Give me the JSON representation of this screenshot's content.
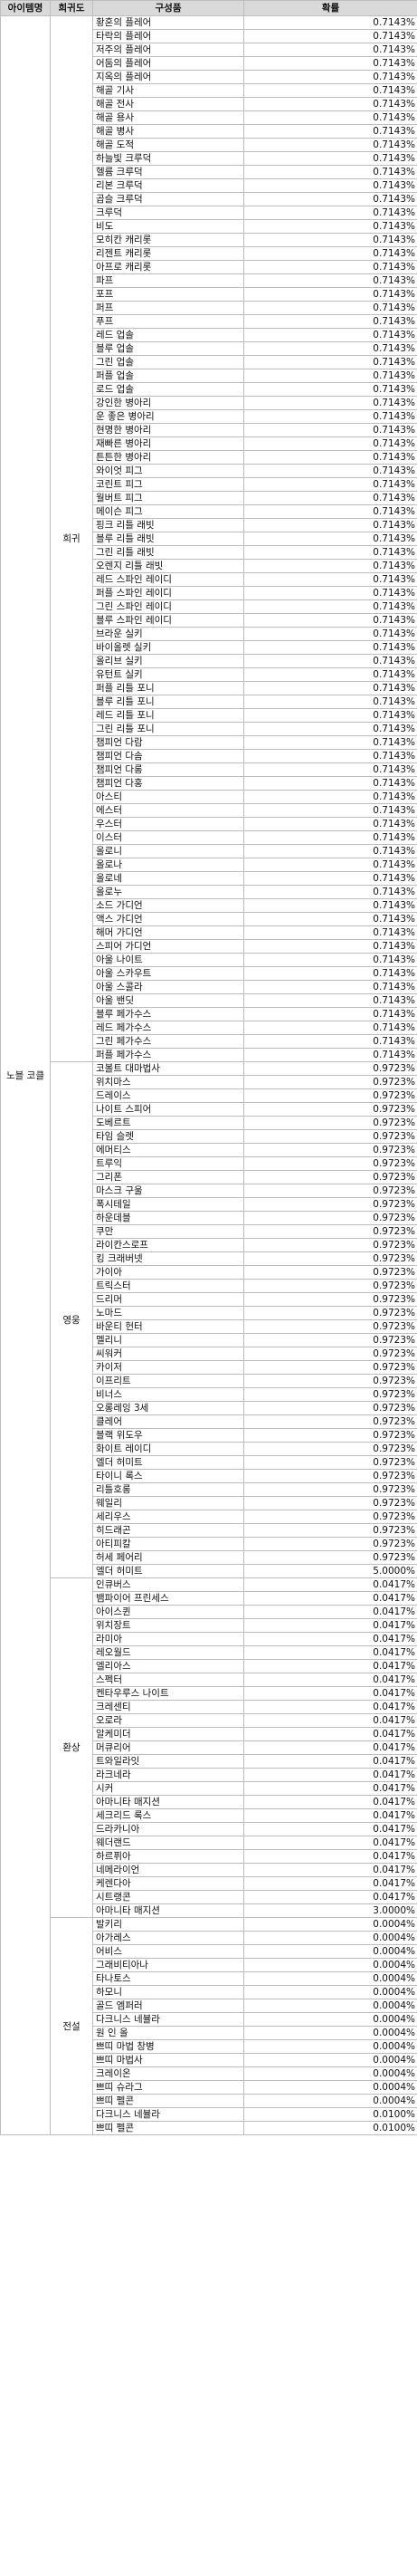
{
  "headers": {
    "item": "아이템명",
    "rarity": "희귀도",
    "component": "구성품",
    "probability": "확률"
  },
  "item_name": "노블 코클",
  "groups": [
    {
      "rarity": "희귀",
      "rows": [
        [
          "황혼의 플레어",
          "0.7143%"
        ],
        [
          "타락의 플레어",
          "0.7143%"
        ],
        [
          "저주의 플레어",
          "0.7143%"
        ],
        [
          "어둠의 플레어",
          "0.7143%"
        ],
        [
          "지옥의 플레어",
          "0.7143%"
        ],
        [
          "해골 기사",
          "0.7143%"
        ],
        [
          "해골 전사",
          "0.7143%"
        ],
        [
          "해골 용사",
          "0.7143%"
        ],
        [
          "해골 병사",
          "0.7143%"
        ],
        [
          "해골 도적",
          "0.7143%"
        ],
        [
          "하늘빛 크루덕",
          "0.7143%"
        ],
        [
          "헬륨 크루덕",
          "0.7143%"
        ],
        [
          "리본 크루덕",
          "0.7143%"
        ],
        [
          "곱슬 크루덕",
          "0.7143%"
        ],
        [
          "크루덕",
          "0.7143%"
        ],
        [
          "비도",
          "0.7143%"
        ],
        [
          "모히칸 캐리롯",
          "0.7143%"
        ],
        [
          "리젠트 캐리롯",
          "0.7143%"
        ],
        [
          "아프로 캐리롯",
          "0.7143%"
        ],
        [
          "파프",
          "0.7143%"
        ],
        [
          "포프",
          "0.7143%"
        ],
        [
          "퍼프",
          "0.7143%"
        ],
        [
          "푸프",
          "0.7143%"
        ],
        [
          "레드 업솔",
          "0.7143%"
        ],
        [
          "블루 업솔",
          "0.7143%"
        ],
        [
          "그린 업솔",
          "0.7143%"
        ],
        [
          "퍼플 업솔",
          "0.7143%"
        ],
        [
          "로드 업솔",
          "0.7143%"
        ],
        [
          "강인한 병아리",
          "0.7143%"
        ],
        [
          "운 좋은 병아리",
          "0.7143%"
        ],
        [
          "현명한 병아리",
          "0.7143%"
        ],
        [
          "재빠른 병아리",
          "0.7143%"
        ],
        [
          "튼튼한 병아리",
          "0.7143%"
        ],
        [
          "와이엇 피그",
          "0.7143%"
        ],
        [
          "코린트 피그",
          "0.7143%"
        ],
        [
          "월버트 피그",
          "0.7143%"
        ],
        [
          "메이슨 피그",
          "0.7143%"
        ],
        [
          "핑크 리틀 래빗",
          "0.7143%"
        ],
        [
          "블루 리틀 래빗",
          "0.7143%"
        ],
        [
          "그린 리틀 래빗",
          "0.7143%"
        ],
        [
          "오렌지 리틀 래빗",
          "0.7143%"
        ],
        [
          "레드 스파인 레이디",
          "0.7143%"
        ],
        [
          "퍼플 스파인 레이디",
          "0.7143%"
        ],
        [
          "그린 스파인 레이디",
          "0.7143%"
        ],
        [
          "블루 스파인 레이디",
          "0.7143%"
        ],
        [
          "브라운 실키",
          "0.7143%"
        ],
        [
          "바이올렛 실키",
          "0.7143%"
        ],
        [
          "올리브 실키",
          "0.7143%"
        ],
        [
          "유턴트 실키",
          "0.7143%"
        ],
        [
          "퍼플 리틀 포니",
          "0.7143%"
        ],
        [
          "블루 리틀 포니",
          "0.7143%"
        ],
        [
          "레드 리틀 포니",
          "0.7143%"
        ],
        [
          "그린 리틀 포니",
          "0.7143%"
        ],
        [
          "챔피언 다람",
          "0.7143%"
        ],
        [
          "챔피언 다솜",
          "0.7143%"
        ],
        [
          "챔피언 다롱",
          "0.7143%"
        ],
        [
          "챔피언 다홍",
          "0.7143%"
        ],
        [
          "아스티",
          "0.7143%"
        ],
        [
          "에스터",
          "0.7143%"
        ],
        [
          "우스터",
          "0.7143%"
        ],
        [
          "이스터",
          "0.7143%"
        ],
        [
          "올로니",
          "0.7143%"
        ],
        [
          "올로나",
          "0.7143%"
        ],
        [
          "올로네",
          "0.7143%"
        ],
        [
          "올로누",
          "0.7143%"
        ],
        [
          "소드 가디언",
          "0.7143%"
        ],
        [
          "액스 가디언",
          "0.7143%"
        ],
        [
          "해머 가디언",
          "0.7143%"
        ],
        [
          "스피어 가디언",
          "0.7143%"
        ],
        [
          "아울 나이트",
          "0.7143%"
        ],
        [
          "아울 스카우트",
          "0.7143%"
        ],
        [
          "아울 스콜라",
          "0.7143%"
        ],
        [
          "아울 밴딧",
          "0.7143%"
        ],
        [
          "블루 페가수스",
          "0.7143%"
        ],
        [
          "레드 페가수스",
          "0.7143%"
        ],
        [
          "그린 페가수스",
          "0.7143%"
        ],
        [
          "퍼플 페가수스",
          "0.7143%"
        ]
      ]
    },
    {
      "rarity": "영웅",
      "rows": [
        [
          "코볼트 대마법사",
          "0.9723%"
        ],
        [
          "위치마스",
          "0.9723%"
        ],
        [
          "드레이스",
          "0.9723%"
        ],
        [
          "나이트 스피어",
          "0.9723%"
        ],
        [
          "도베르트",
          "0.9723%"
        ],
        [
          "타임 슬렛",
          "0.9723%"
        ],
        [
          "에머티스",
          "0.9723%"
        ],
        [
          "트루익",
          "0.9723%"
        ],
        [
          "그리폰",
          "0.9723%"
        ],
        [
          "마스크 구울",
          "0.9723%"
        ],
        [
          "폭시테일",
          "0.9723%"
        ],
        [
          "하운데블",
          "0.9723%"
        ],
        [
          "쿠만",
          "0.9723%"
        ],
        [
          "라이칸스로프",
          "0.9723%"
        ],
        [
          "킹 크래버넷",
          "0.9723%"
        ],
        [
          "가이아",
          "0.9723%"
        ],
        [
          "트릭스터",
          "0.9723%"
        ],
        [
          "드리머",
          "0.9723%"
        ],
        [
          "노마드",
          "0.9723%"
        ],
        [
          "바운티 헌터",
          "0.9723%"
        ],
        [
          "멜리니",
          "0.9723%"
        ],
        [
          "씨워커",
          "0.9723%"
        ],
        [
          "카이저",
          "0.9723%"
        ],
        [
          "이프리트",
          "0.9723%"
        ],
        [
          "비너스",
          "0.9723%"
        ],
        [
          "오롱레잉 3세",
          "0.9723%"
        ],
        [
          "클레어",
          "0.9723%"
        ],
        [
          "블랙 위도우",
          "0.9723%"
        ],
        [
          "화이트 레이디",
          "0.9723%"
        ],
        [
          "엘더 허미트",
          "0.9723%"
        ],
        [
          "타이니 록스",
          "0.9723%"
        ],
        [
          "리틀호롱",
          "0.9723%"
        ],
        [
          "웨일리",
          "0.9723%"
        ],
        [
          "세리우스",
          "0.9723%"
        ],
        [
          "히드래곤",
          "0.9723%"
        ],
        [
          "아티피칼",
          "0.9723%"
        ],
        [
          "허세 페어리",
          "0.9723%"
        ],
        [
          "엘더 허미트",
          "5.0000%"
        ]
      ]
    },
    {
      "rarity": "환상",
      "rows": [
        [
          "인큐버스",
          "0.0417%"
        ],
        [
          "뱀파이어 프린세스",
          "0.0417%"
        ],
        [
          "아이스퀸",
          "0.0417%"
        ],
        [
          "위치장트",
          "0.0417%"
        ],
        [
          "라미아",
          "0.0417%"
        ],
        [
          "레오월드",
          "0.0417%"
        ],
        [
          "엘리아스",
          "0.0417%"
        ],
        [
          "스펙터",
          "0.0417%"
        ],
        [
          "켄타우루스 나이트",
          "0.0417%"
        ],
        [
          "크레센티",
          "0.0417%"
        ],
        [
          "오로라",
          "0.0417%"
        ],
        [
          "알케미더",
          "0.0417%"
        ],
        [
          "머큐리어",
          "0.0417%"
        ],
        [
          "트와일라잇",
          "0.0417%"
        ],
        [
          "라크네라",
          "0.0417%"
        ],
        [
          "시커",
          "0.0417%"
        ],
        [
          "아마니타 매지션",
          "0.0417%"
        ],
        [
          "세크리드 록스",
          "0.0417%"
        ],
        [
          "드라카니아",
          "0.0417%"
        ],
        [
          "웨더랜드",
          "0.0417%"
        ],
        [
          "하르퓌아",
          "0.0417%"
        ],
        [
          "네메라이언",
          "0.0417%"
        ],
        [
          "케렌다아",
          "0.0417%"
        ],
        [
          "시트랭콘",
          "0.0417%"
        ],
        [
          "아마니타 매지션",
          "3.0000%"
        ]
      ]
    },
    {
      "rarity": "전설",
      "rows": [
        [
          "발키리",
          "0.0004%"
        ],
        [
          "아가레스",
          "0.0004%"
        ],
        [
          "어비스",
          "0.0004%"
        ],
        [
          "그래비티아나",
          "0.0004%"
        ],
        [
          "타나토스",
          "0.0004%"
        ],
        [
          "하모니",
          "0.0004%"
        ],
        [
          "골드 엠퍼러",
          "0.0004%"
        ],
        [
          "다크니스 네뷸라",
          "0.0004%"
        ],
        [
          "원 인 올",
          "0.0004%"
        ],
        [
          "쁘띠 마법 창병",
          "0.0004%"
        ],
        [
          "쁘띠 마법사",
          "0.0004%"
        ],
        [
          "크레이온",
          "0.0004%"
        ],
        [
          "쁘띠 슈라그",
          "0.0004%"
        ],
        [
          "쁘띠 펠콘",
          "0.0004%"
        ],
        [
          "다크니스 네뷸라",
          "0.0100%"
        ],
        [
          "쁘띠 펠콘",
          "0.0100%"
        ]
      ]
    }
  ]
}
